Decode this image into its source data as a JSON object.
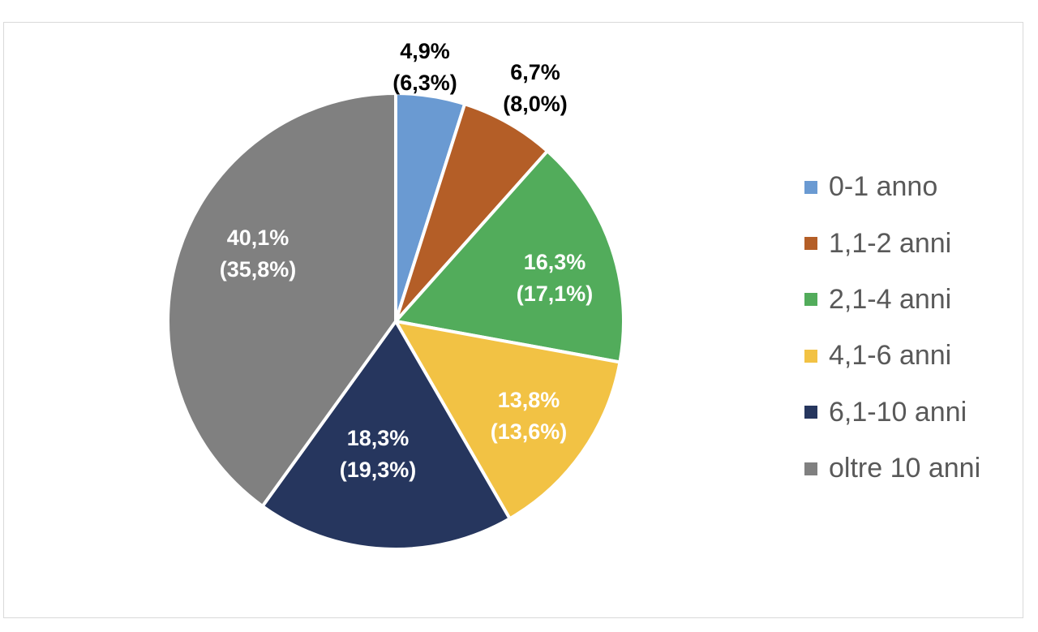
{
  "chart_data": {
    "type": "pie",
    "slices": [
      {
        "label": "0-1 anno",
        "value": 4.9,
        "value_label": "4,9%",
        "secondary_label": "(6,3%)",
        "secondary_value": 6.3,
        "color": "#6a9ad2"
      },
      {
        "label": "1,1-2 anni",
        "value": 6.7,
        "value_label": "6,7%",
        "secondary_label": "(8,0%)",
        "secondary_value": 8.0,
        "color": "#b45e27"
      },
      {
        "label": "2,1-4 anni",
        "value": 16.3,
        "value_label": "16,3%",
        "secondary_label": "(17,1%)",
        "secondary_value": 17.1,
        "color": "#52ac5b"
      },
      {
        "label": "4,1-6 anni",
        "value": 13.8,
        "value_label": "13,8%",
        "secondary_label": "(13,6%)",
        "secondary_value": 13.6,
        "color": "#f2c244"
      },
      {
        "label": "6,1-10 anni",
        "value": 18.3,
        "value_label": "18,3%",
        "secondary_label": "(19,3%)",
        "secondary_value": 19.3,
        "color": "#26365e"
      },
      {
        "label": "oltre 10 anni",
        "value": 40.1,
        "value_label": "40,1%",
        "secondary_label": "(35,8%)",
        "secondary_value": 35.8,
        "color": "#808080"
      }
    ],
    "legend_position": "right",
    "start_angle": "top",
    "direction": "clockwise",
    "inside_label_color": "#ffffff",
    "outside_label_color": "#000000"
  }
}
